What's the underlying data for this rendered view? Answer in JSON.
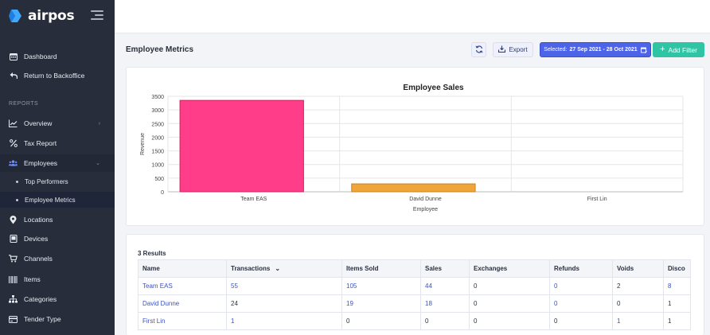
{
  "app": {
    "name": "airpos"
  },
  "sidebar": {
    "top_items": [
      {
        "label": "Dashboard",
        "icon": "calendar-icon"
      },
      {
        "label": "Return to Backoffice",
        "icon": "return-icon"
      }
    ],
    "section_label": "REPORTS",
    "report_items": [
      {
        "label": "Overview",
        "icon": "line-chart-icon",
        "has_chevron": true
      },
      {
        "label": "Tax Report",
        "icon": "percent-icon"
      },
      {
        "label": "Employees",
        "icon": "users-icon",
        "has_chevron": true,
        "expanded": true
      },
      {
        "label": "Locations",
        "icon": "location-pin-icon"
      },
      {
        "label": "Devices",
        "icon": "device-icon"
      },
      {
        "label": "Channels",
        "icon": "cart-icon"
      },
      {
        "label": "Items",
        "icon": "barcode-icon"
      },
      {
        "label": "Categories",
        "icon": "sitemap-icon"
      },
      {
        "label": "Tender Type",
        "icon": "card-icon"
      }
    ],
    "sub_items": [
      {
        "label": "Top Performers"
      },
      {
        "label": "Employee Metrics",
        "active": true
      }
    ]
  },
  "header": {
    "title": "Employee Metrics",
    "export_label": "Export",
    "date_prefix": "Selected:",
    "date_range": "27 Sep 2021 - 28 Oct 2021",
    "add_filter_label": "Add Filter"
  },
  "chart_data": {
    "type": "bar",
    "title": "Employee Sales",
    "xlabel": "Employee",
    "ylabel": "Revenue",
    "categories": [
      "Team EAS",
      "David Dunne",
      "First Lin"
    ],
    "values": [
      3350,
      290,
      0
    ],
    "colors": [
      "#ff3d89",
      "#f0a53a",
      "#6aa6e8"
    ],
    "ylim": [
      0,
      3500
    ],
    "yticks": [
      0,
      500,
      1000,
      1500,
      2000,
      2500,
      3000,
      3500
    ],
    "grid": true
  },
  "table": {
    "results_label": "3 Results",
    "columns": [
      "Name",
      "Transactions",
      "Items Sold",
      "Sales",
      "Exchanges",
      "Refunds",
      "Voids",
      "Disco"
    ],
    "rows": [
      [
        "Team EAS",
        "55",
        "105",
        "44",
        "0",
        "0",
        "2",
        "8"
      ],
      [
        "David Dunne",
        "24",
        "19",
        "18",
        "0",
        "0",
        "0",
        "1"
      ],
      [
        "First Lin",
        "1",
        "0",
        "0",
        "0",
        "0",
        "1",
        "1"
      ]
    ]
  },
  "colors": {
    "accent": "#4e64e8",
    "success": "#2fc4a3",
    "sidebar": "#272d3b"
  }
}
